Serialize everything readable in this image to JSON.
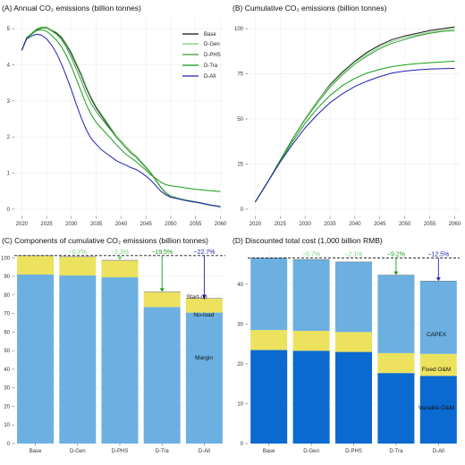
{
  "colors": {
    "base": "#111111",
    "dgen": "#7ad07a",
    "dphs": "#3a9a3a",
    "dtra": "#169c16",
    "dall": "#2020b0",
    "margin": "#6bb0e0",
    "noload": "#ede25e",
    "startup": "#bcbcbc",
    "varom": "#0a6ad0",
    "fixedom": "#ede25e",
    "capex": "#6bb0e0"
  },
  "chart_data": [
    {
      "type": "line",
      "title": "(A) Annual CO₂ emissions (billion tonnes)",
      "x_ticks": [
        "2020",
        "2025",
        "2030",
        "2035",
        "2040",
        "2045",
        "2050",
        "2055",
        "2060"
      ],
      "y_ticks": [
        "0",
        "1",
        "2",
        "3",
        "4",
        "5"
      ],
      "xlim": [
        2018.5,
        2061
      ],
      "ylim": [
        -0.2,
        5.3
      ],
      "legend_position": "top-right",
      "series": [
        {
          "name": "Base",
          "color_key": "base",
          "x": [
            2020,
            2021,
            2022,
            2023,
            2024,
            2025,
            2026,
            2027,
            2028,
            2029,
            2030,
            2031,
            2032,
            2033,
            2034,
            2035,
            2036,
            2037,
            2038,
            2039,
            2040,
            2041,
            2042,
            2043,
            2044,
            2045,
            2046,
            2047,
            2048,
            2049,
            2050,
            2051,
            2052,
            2053,
            2054,
            2055,
            2056,
            2057,
            2058,
            2059,
            2060
          ],
          "y": [
            4.4,
            4.75,
            4.85,
            4.97,
            5.02,
            5.02,
            4.95,
            4.88,
            4.75,
            4.55,
            4.3,
            4.0,
            3.7,
            3.35,
            3.05,
            2.8,
            2.6,
            2.4,
            2.2,
            2.0,
            1.85,
            1.7,
            1.55,
            1.45,
            1.3,
            1.15,
            1.0,
            0.8,
            0.6,
            0.45,
            0.35,
            0.32,
            0.28,
            0.25,
            0.22,
            0.2,
            0.18,
            0.15,
            0.12,
            0.1,
            0.08
          ]
        },
        {
          "name": "D-Gen",
          "color_key": "dgen",
          "x": [
            2020,
            2021,
            2022,
            2023,
            2024,
            2025,
            2026,
            2027,
            2028,
            2029,
            2030,
            2031,
            2032,
            2033,
            2034,
            2035,
            2036,
            2037,
            2038,
            2039,
            2040,
            2041,
            2042,
            2043,
            2044,
            2045,
            2046,
            2047,
            2048,
            2049,
            2050,
            2051,
            2052,
            2053,
            2054,
            2055,
            2056,
            2057,
            2058,
            2059,
            2060
          ],
          "y": [
            4.4,
            4.76,
            4.88,
            5.0,
            5.05,
            5.05,
            4.97,
            4.9,
            4.78,
            4.58,
            4.35,
            4.05,
            3.75,
            3.4,
            3.1,
            2.85,
            2.65,
            2.45,
            2.25,
            2.05,
            1.9,
            1.75,
            1.6,
            1.48,
            1.33,
            1.18,
            1.02,
            0.82,
            0.62,
            0.47,
            0.37,
            0.33,
            0.29,
            0.26,
            0.23,
            0.21,
            0.18,
            0.15,
            0.12,
            0.1,
            0.08
          ]
        },
        {
          "name": "D-PHS",
          "color_key": "dphs",
          "x": [
            2020,
            2021,
            2022,
            2023,
            2024,
            2025,
            2026,
            2027,
            2028,
            2029,
            2030,
            2031,
            2032,
            2033,
            2034,
            2035,
            2036,
            2037,
            2038,
            2039,
            2040,
            2041,
            2042,
            2043,
            2044,
            2045,
            2046,
            2047,
            2048,
            2049,
            2050,
            2051,
            2052,
            2053,
            2054,
            2055,
            2056,
            2057,
            2058,
            2059,
            2060
          ],
          "y": [
            4.4,
            4.75,
            4.86,
            4.98,
            5.03,
            5.02,
            4.94,
            4.85,
            4.7,
            4.48,
            4.2,
            3.88,
            3.55,
            3.2,
            2.92,
            2.7,
            2.52,
            2.35,
            2.18,
            2.0,
            1.85,
            1.7,
            1.55,
            1.45,
            1.3,
            1.15,
            1.0,
            0.8,
            0.6,
            0.45,
            0.35,
            0.31,
            0.27,
            0.24,
            0.21,
            0.19,
            0.17,
            0.14,
            0.11,
            0.09,
            0.07
          ]
        },
        {
          "name": "D-Tra",
          "color_key": "dtra",
          "x": [
            2020,
            2021,
            2022,
            2023,
            2024,
            2025,
            2026,
            2027,
            2028,
            2029,
            2030,
            2031,
            2032,
            2033,
            2034,
            2035,
            2036,
            2037,
            2038,
            2039,
            2040,
            2041,
            2042,
            2043,
            2044,
            2045,
            2046,
            2047,
            2048,
            2049,
            2050,
            2051,
            2052,
            2053,
            2054,
            2055,
            2056,
            2057,
            2058,
            2059,
            2060
          ],
          "y": [
            4.4,
            4.75,
            4.85,
            4.95,
            4.97,
            4.93,
            4.82,
            4.68,
            4.5,
            4.25,
            3.95,
            3.6,
            3.25,
            2.9,
            2.62,
            2.4,
            2.25,
            2.1,
            1.95,
            1.8,
            1.65,
            1.52,
            1.42,
            1.32,
            1.2,
            1.08,
            0.95,
            0.85,
            0.75,
            0.68,
            0.65,
            0.63,
            0.61,
            0.59,
            0.57,
            0.55,
            0.54,
            0.52,
            0.51,
            0.5,
            0.49
          ]
        },
        {
          "name": "D-All",
          "color_key": "dall",
          "x": [
            2020,
            2021,
            2022,
            2023,
            2024,
            2025,
            2026,
            2027,
            2028,
            2029,
            2030,
            2031,
            2032,
            2033,
            2034,
            2035,
            2036,
            2037,
            2038,
            2039,
            2040,
            2041,
            2042,
            2043,
            2044,
            2045,
            2046,
            2047,
            2048,
            2049,
            2050,
            2051,
            2052,
            2053,
            2054,
            2055,
            2056,
            2057,
            2058,
            2059,
            2060
          ],
          "y": [
            4.4,
            4.72,
            4.8,
            4.85,
            4.82,
            4.72,
            4.55,
            4.32,
            4.02,
            3.68,
            3.3,
            2.9,
            2.52,
            2.2,
            1.95,
            1.8,
            1.65,
            1.55,
            1.45,
            1.35,
            1.28,
            1.22,
            1.15,
            1.1,
            1.02,
            0.92,
            0.8,
            0.65,
            0.5,
            0.4,
            0.33,
            0.3,
            0.27,
            0.24,
            0.22,
            0.2,
            0.17,
            0.14,
            0.11,
            0.09,
            0.06
          ]
        }
      ]
    },
    {
      "type": "line",
      "title": "(B) Cumulative CO₂ emissions (billion tonnes)",
      "x_ticks": [
        "2020",
        "2025",
        "2030",
        "2035",
        "2040",
        "2045",
        "2050",
        "2055",
        "2060"
      ],
      "y_ticks": [
        "0",
        "25",
        "50",
        "75",
        "100"
      ],
      "xlim": [
        2018.5,
        2061
      ],
      "ylim": [
        -4,
        106
      ],
      "series": [
        {
          "name": "Base",
          "color_key": "base",
          "x": [
            2020,
            2022.5,
            2025,
            2027.5,
            2030,
            2032.5,
            2035,
            2037.5,
            2040,
            2042.5,
            2045,
            2047.5,
            2050,
            2052.5,
            2055,
            2057.5,
            2060
          ],
          "y": [
            4,
            15,
            27,
            39,
            50,
            60,
            69,
            76,
            82,
            87,
            91,
            94,
            96,
            97.5,
            99,
            100,
            101
          ]
        },
        {
          "name": "D-Gen",
          "color_key": "dgen",
          "x": [
            2020,
            2022.5,
            2025,
            2027.5,
            2030,
            2032.5,
            2035,
            2037.5,
            2040,
            2042.5,
            2045,
            2047.5,
            2050,
            2052.5,
            2055,
            2057.5,
            2060
          ],
          "y": [
            4,
            15,
            27,
            39,
            50,
            60,
            68.5,
            75.5,
            81.5,
            86,
            90,
            93,
            95,
            96.5,
            98,
            99,
            100
          ]
        },
        {
          "name": "D-PHS",
          "color_key": "dphs",
          "x": [
            2020,
            2022.5,
            2025,
            2027.5,
            2030,
            2032.5,
            2035,
            2037.5,
            2040,
            2042.5,
            2045,
            2047.5,
            2050,
            2052.5,
            2055,
            2057.5,
            2060
          ],
          "y": [
            4,
            15,
            27,
            39,
            49.5,
            59,
            67.5,
            74.5,
            80.5,
            85,
            89,
            92,
            94,
            96,
            97.5,
            98.5,
            99
          ]
        },
        {
          "name": "D-Tra",
          "color_key": "dtra",
          "x": [
            2020,
            2022.5,
            2025,
            2027.5,
            2030,
            2032.5,
            2035,
            2037.5,
            2040,
            2042.5,
            2045,
            2047.5,
            2050,
            2052.5,
            2055,
            2057.5,
            2060
          ],
          "y": [
            4,
            15,
            26.5,
            37.5,
            47.5,
            56,
            63,
            68.5,
            72.5,
            75.5,
            77.5,
            79,
            80,
            80.7,
            81.2,
            81.6,
            82
          ]
        },
        {
          "name": "D-All",
          "color_key": "dall",
          "x": [
            2020,
            2022.5,
            2025,
            2027.5,
            2030,
            2032.5,
            2035,
            2037.5,
            2040,
            2042.5,
            2045,
            2047.5,
            2050,
            2052.5,
            2055,
            2057.5,
            2060
          ],
          "y": [
            4,
            15,
            26,
            36,
            45,
            52.5,
            59,
            64,
            68,
            71,
            73.5,
            75.5,
            76.5,
            77.2,
            77.6,
            77.9,
            78
          ]
        }
      ]
    },
    {
      "type": "bar",
      "stacked": true,
      "title": "(C) Components of cumulative CO₂ emissions (billion tonnes)",
      "categories": [
        "Base",
        "D-Gen",
        "D-PHS",
        "D-Tra",
        "D-All"
      ],
      "y_ticks": [
        "0",
        "10",
        "20",
        "30",
        "40",
        "50",
        "60",
        "70",
        "80",
        "90",
        "100"
      ],
      "ylim": [
        0,
        104
      ],
      "reference_line": 101.2,
      "series": [
        {
          "name": "Margin",
          "color_key": "margin",
          "values": [
            91,
            90.5,
            89.5,
            73.5,
            70.5
          ]
        },
        {
          "name": "No-load",
          "color_key": "noload",
          "values": [
            10,
            10,
            9,
            8,
            7.5
          ]
        },
        {
          "name": "Start-up",
          "color_key": "startup",
          "values": [
            0.2,
            0.2,
            0.2,
            0.2,
            0.2
          ]
        }
      ],
      "segment_labels": {
        "Margin": "Margin",
        "No-load": "No-load",
        "Start-up": "Start-up"
      },
      "annotations": [
        {
          "category": "D-Gen",
          "text": "−0.7%",
          "color_key": "dgen",
          "arrow": false
        },
        {
          "category": "D-PHS",
          "text": "−2.3%",
          "color_key": "dgen",
          "arrow": true
        },
        {
          "category": "D-Tra",
          "text": "−19.5%",
          "color_key": "dtra",
          "arrow": true
        },
        {
          "category": "D-All",
          "text": "−22.7%",
          "color_key": "dall",
          "arrow": true
        }
      ]
    },
    {
      "type": "bar",
      "stacked": true,
      "title": "(D) Discounted total cost (1,000 billion RMB)",
      "categories": [
        "Base",
        "D-Gen",
        "D-PHS",
        "D-Tra",
        "D-All"
      ],
      "y_ticks": [
        "0",
        "10",
        "20",
        "30",
        "40"
      ],
      "ylim": [
        0,
        48.5
      ],
      "reference_line": 46.6,
      "series": [
        {
          "name": "Variable O&M",
          "color_key": "varom",
          "values": [
            23.5,
            23.3,
            23.0,
            17.7,
            17.0
          ]
        },
        {
          "name": "Fixed O&M",
          "color_key": "fixedom",
          "values": [
            5.0,
            5.0,
            5.0,
            5.0,
            5.5
          ]
        },
        {
          "name": "CAPEX",
          "color_key": "capex",
          "values": [
            18.1,
            17.9,
            17.6,
            19.6,
            18.3
          ]
        }
      ],
      "segment_labels": {
        "Variable O&M": "Variable O&M",
        "Fixed O&M": "Fixed O&M",
        "CAPEX": "CAPEX"
      },
      "annotations": [
        {
          "category": "D-Gen",
          "text": "−0.7%",
          "color_key": "dgen",
          "arrow": false
        },
        {
          "category": "D-PHS",
          "text": "−2.1%",
          "color_key": "dgen",
          "arrow": false
        },
        {
          "category": "D-Tra",
          "text": "−9.2%",
          "color_key": "dtra",
          "arrow": true
        },
        {
          "category": "D-All",
          "text": "−12.5%",
          "color_key": "dall",
          "arrow": true
        }
      ]
    }
  ]
}
